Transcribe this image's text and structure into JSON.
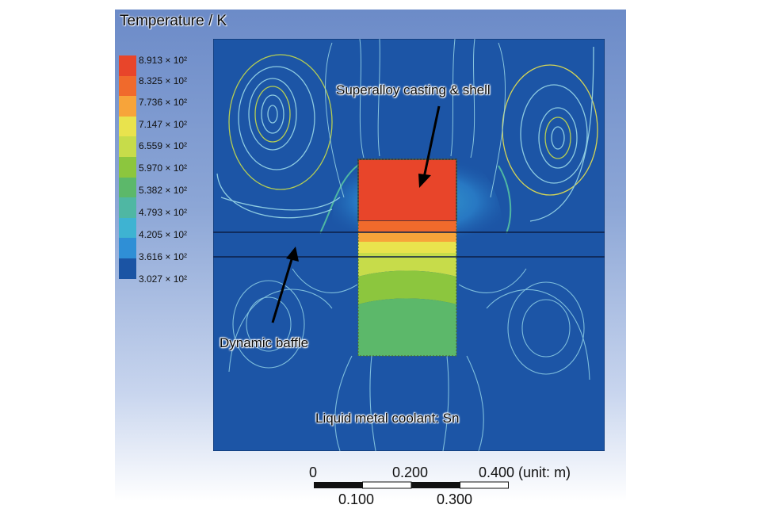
{
  "title": "Temperature / K",
  "legend": {
    "ticks": [
      "8.913 × 10²",
      "8.325 × 10²",
      "7.736 × 10²",
      "7.147 × 10²",
      "6.559 × 10²",
      "5.970 × 10²",
      "5.382 × 10²",
      "4.793 × 10²",
      "4.205 × 10²",
      "3.616 × 10²",
      "3.027 × 10²"
    ],
    "colors": [
      "#e8452a",
      "#f06a2c",
      "#f7a43a",
      "#e9e34d",
      "#c7dc4a",
      "#8cc63e",
      "#5cb86a",
      "#4fb7a3",
      "#3eb3d2",
      "#2f8fd6",
      "#1b54a4"
    ]
  },
  "annotations": {
    "casting": "Superalloy casting & shell",
    "baffle": "Dynamic baffle",
    "coolant": "Liquid metal coolant: Sn"
  },
  "scale": {
    "top_labels": [
      "0",
      "0.200",
      "0.400 (unit: m)"
    ],
    "bottom_labels": [
      "0.100",
      "0.300"
    ]
  }
}
